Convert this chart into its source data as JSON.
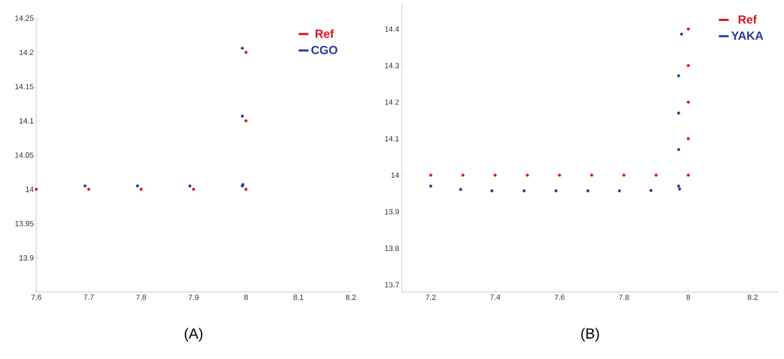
{
  "chart_data": [
    {
      "type": "scatter",
      "marker": "circle",
      "legend": "top right",
      "grid": false,
      "xlim": [
        7.6,
        8.2
      ],
      "ylim": [
        13.85,
        14.25
      ],
      "xticks": [
        7.6,
        7.7,
        7.8,
        7.9,
        8,
        8.1,
        8.2
      ],
      "yticks": [
        13.9,
        13.95,
        14,
        14.05,
        14.1,
        14.15,
        14.2,
        14.25
      ],
      "annotations": [
        "(A)"
      ],
      "series": [
        {
          "name": "Ref",
          "color": "#e0101e",
          "x": [
            7.6,
            7.7,
            7.8,
            7.9,
            8,
            8,
            8
          ],
          "values": [
            14,
            14,
            14,
            14,
            14,
            14.1,
            14.2
          ]
        },
        {
          "name": "CGO",
          "color": "#2a3a9a",
          "x": [
            7.693,
            7.793,
            7.893,
            7.993,
            7.994,
            7.993,
            7.993
          ],
          "values": [
            14.005,
            14.005,
            14.005,
            14.005,
            14.007,
            14.107,
            14.206
          ]
        }
      ]
    },
    {
      "type": "scatter",
      "marker": "circle",
      "legend": "top right",
      "grid": false,
      "xlim": [
        7.11,
        8.28
      ],
      "ylim": [
        13.68,
        14.47
      ],
      "xticks": [
        7.2,
        7.4,
        7.6,
        7.8,
        8,
        8.2
      ],
      "yticks": [
        13.7,
        13.8,
        13.9,
        14,
        14.1,
        14.2,
        14.3,
        14.4
      ],
      "annotations": [
        "(B)"
      ],
      "series": [
        {
          "name": "Ref",
          "color": "#e0101e",
          "x": [
            7.2,
            7.3,
            7.4,
            7.5,
            7.6,
            7.7,
            7.8,
            7.9,
            8,
            8,
            8,
            8,
            8
          ],
          "values": [
            14,
            14,
            14,
            14,
            14,
            14,
            14,
            14,
            14,
            14.1,
            14.2,
            14.3,
            14.4
          ]
        },
        {
          "name": "YAKA",
          "color": "#2a3a9a",
          "x": [
            7.2,
            7.293,
            7.39,
            7.49,
            7.589,
            7.688,
            7.786,
            7.884,
            7.97,
            7.973,
            7.97,
            7.97,
            7.97,
            7.979
          ],
          "values": [
            13.97,
            13.961,
            13.957,
            13.957,
            13.957,
            13.957,
            13.957,
            13.958,
            13.97,
            13.962,
            14.07,
            14.17,
            14.272,
            14.386
          ]
        }
      ]
    }
  ]
}
